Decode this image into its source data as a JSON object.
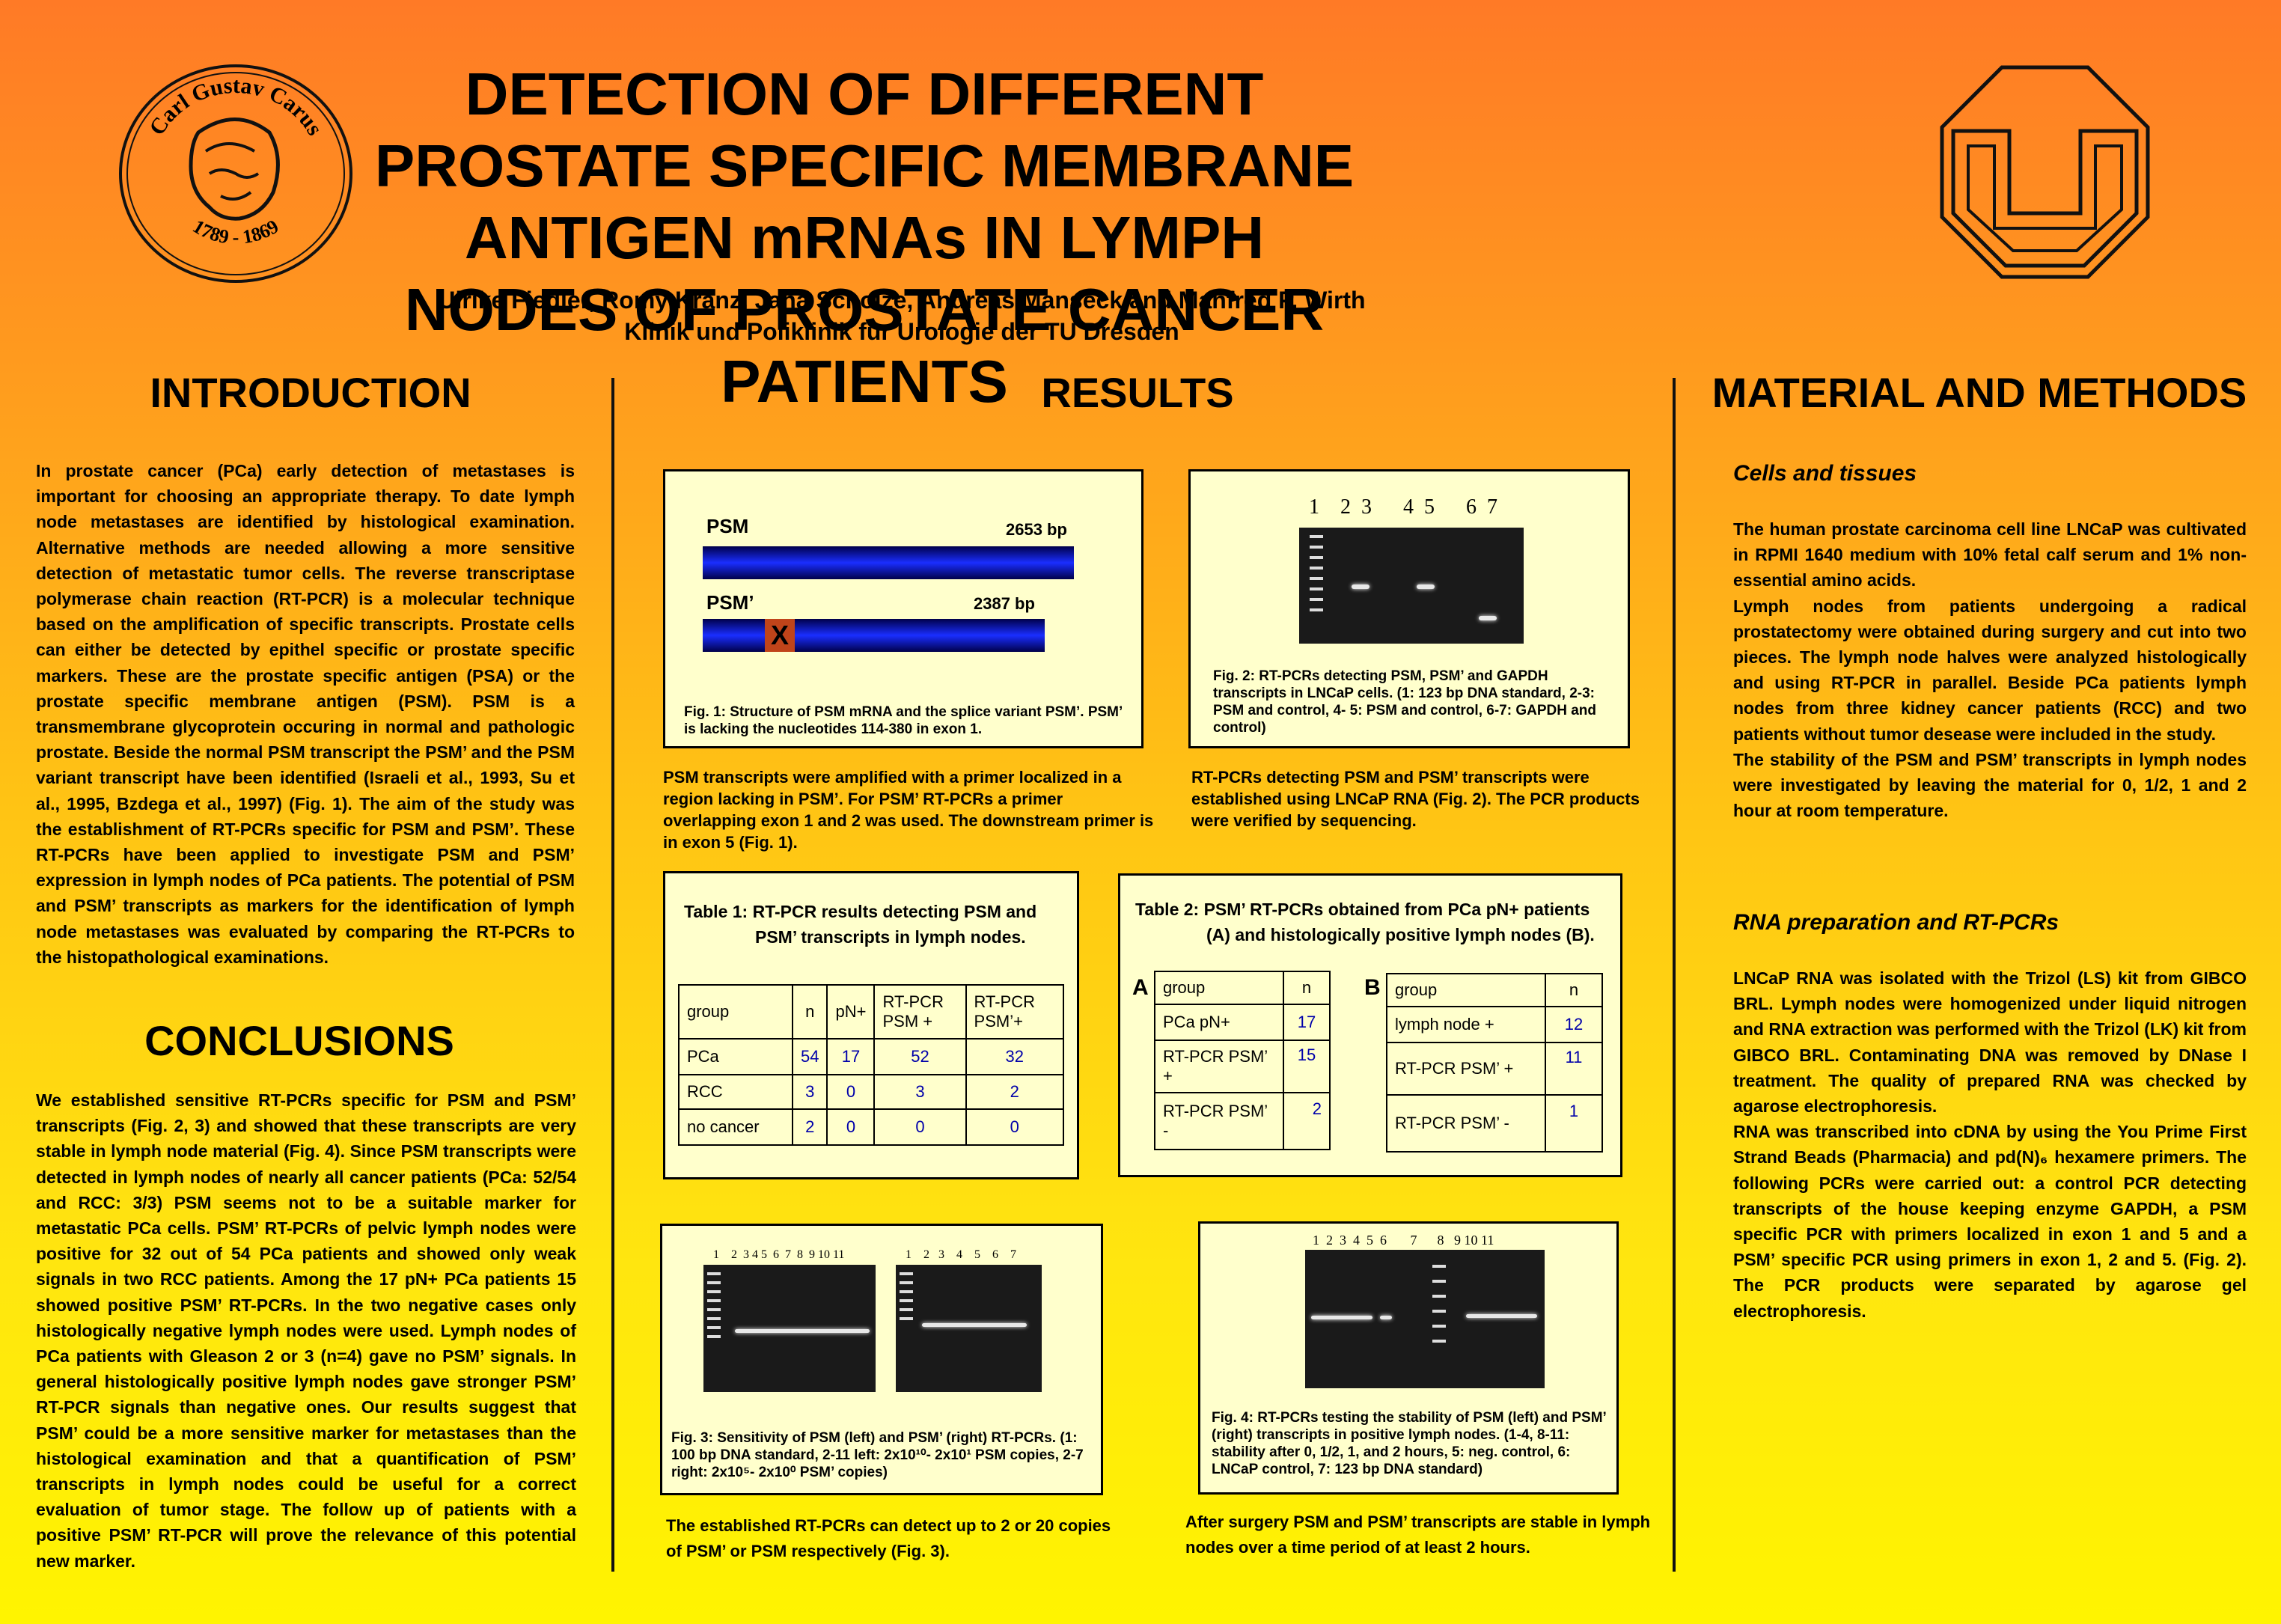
{
  "title": "DETECTION OF DIFFERENT PROSTATE SPECIFIC MEMBRANE ANTIGEN mRNAs IN LYMPH NODES OF PROSTATE CANCER PATIENTS",
  "authors": "Ulrike Fiedler, Romy Kranz, Jana Scholze, Andreas Manseck and Manfred P. Wirth",
  "affiliation": "Klinik und Poliklinik für Urologie der TU Dresden",
  "logo_left": {
    "text_top": "Carl Gustav Carus",
    "text_bottom": "1789 - 1869"
  },
  "sections": {
    "introduction": {
      "heading": "INTRODUCTION",
      "text": "In prostate cancer (PCa) early detection of metastases is important for choosing an appropriate therapy. To date lymph node metastases are identified by histological examination. Alternative methods are needed allowing a more sensitive detection of metastatic tumor cells. The reverse transcriptase polymerase chain reaction (RT-PCR) is a molecular technique based on the amplification of specific transcripts. Prostate cells can either be detected by epithel specific or prostate specific markers. These are the prostate specific antigen (PSA) or the prostate specific membrane antigen (PSM). PSM is a transmembrane glycoprotein occuring in normal and pathologic prostate. Beside the normal PSM transcript the PSM’ and the PSM variant transcript have been identified (Israeli et al., 1993, Su et al., 1995, Bzdega et al., 1997) (Fig. 1). The aim of the study was the establishment of RT-PCRs specific for PSM and PSM’. These RT-PCRs have been applied to investigate PSM and PSM’ expression in lymph nodes of PCa patients. The potential of PSM and PSM’ transcripts as markers for the identification of lymph node metastases was evaluated by comparing the RT-PCRs to the histopathological examinations."
    },
    "conclusions": {
      "heading": "CONCLUSIONS",
      "text": "We established sensitive RT-PCRs specific for PSM and PSM’ transcripts (Fig. 2, 3) and showed that these transcripts are very stable in lymph node material (Fig. 4). Since PSM transcripts were detected in lymph nodes of nearly all cancer patients (PCa: 52/54 and RCC: 3/3) PSM seems not to be a suitable marker for metastatic PCa cells. PSM’ RT-PCRs of pelvic lymph nodes were positive for 32 out of 54 PCa patients and showed only weak signals in two RCC patients. Among the 17 pN+ PCa patients 15 showed positive PSM’ RT-PCRs. In the two negative cases only histologically negative lymph nodes were used. Lymph nodes of PCa patients with Gleason 2 or 3 (n=4) gave no PSM’ signals. In general histologically positive lymph nodes gave stronger PSM’ RT-PCR signals than negative ones. Our results suggest that PSM’ could be a more sensitive marker for metastases than the histological examination and that a quantification of PSM’ transcripts in lymph nodes could be useful for a correct evaluation of tumor stage. The follow up of patients with a positive PSM’ RT-PCR will prove the relevance of this potential new marker."
    },
    "results": {
      "heading": "RESULTS",
      "fig1": {
        "psm_label": "PSM",
        "psm_bp": "2653 bp",
        "psmp_label": "PSM’",
        "psmp_bp": "2387 bp",
        "mark": "X",
        "caption": "Fig. 1: Structure of PSM mRNA and the splice variant PSM’. PSM’ is lacking the nucleotides 114-380 in exon 1.",
        "text": "PSM transcripts were amplified with a primer localized in a region lacking in PSM’. For PSM’ RT-PCRs a primer overlapping exon 1 and 2 was used. The downstream primer is in exon 5  (Fig. 1)."
      },
      "fig2": {
        "lanes": "1    2  3      4  5      6  7",
        "caption": "Fig. 2: RT-PCRs detecting PSM, PSM’ and GAPDH transcripts in LNCaP cells. (1: 123 bp DNA  standard, 2-3: PSM and control, 4- 5: PSM and control, 6-7: GAPDH and control)",
        "text": "RT-PCRs detecting PSM and PSM’ transcripts were established using LNCaP RNA (Fig. 2). The PCR products were verified by sequencing."
      },
      "table1": {
        "title_line1": "Table 1: RT-PCR results detecting PSM and",
        "title_line2": "PSM’ transcripts in lymph nodes.",
        "headers": [
          "group",
          "n",
          "pN+",
          "RT-PCR PSM +",
          "RT-PCR PSM’+"
        ],
        "rows": [
          [
            "PCa",
            "54",
            "17",
            "52",
            "32"
          ],
          [
            "RCC",
            "3",
            "0",
            "3",
            "2"
          ],
          [
            "no cancer",
            "2",
            "0",
            "0",
            "0"
          ]
        ]
      },
      "table2": {
        "title_line1": "Table 2: PSM’ RT-PCRs obtained from PCa pN+ patients",
        "title_line2": "(A) and histologically positive lymph nodes (B).",
        "label_a": "A",
        "label_b": "B",
        "a_headers": [
          "group",
          "n"
        ],
        "a_rows": [
          [
            "PCa pN+",
            "17"
          ],
          [
            "RT-PCR PSM’ +",
            "15"
          ],
          [
            "RT-PCR PSM’ -",
            "2"
          ]
        ],
        "b_headers": [
          "group",
          "n"
        ],
        "b_rows": [
          [
            "lymph node +",
            "12"
          ],
          [
            "RT-PCR PSM’ +",
            "11"
          ],
          [
            "RT-PCR PSM’ -",
            "1"
          ]
        ]
      },
      "fig3": {
        "lanes_left": "1    2  3 4 5  6  7  8  9 10 11",
        "lanes_right": "1    2   3    4    5    6    7",
        "caption": "Fig. 3: Sensitivity of PSM (left) and PSM’ (right) RT-PCRs. (1: 100 bp DNA standard, 2-11 left: 2x10¹⁰- 2x10¹ PSM copies, 2-7 right: 2x10⁵- 2x10⁰ PSM’ copies)",
        "text": "The established RT-PCRs can detect up to 2 or 20 copies of PSM’ or PSM respectively (Fig. 3)."
      },
      "fig4": {
        "lanes": "1  2  3  4  5  6       7      8   9 10 11",
        "caption": "Fig. 4: RT-PCRs testing the stability of PSM (left) and PSM’ (right) transcripts in positive lymph nodes. (1-4, 8-11: stability after 0, 1/2, 1, and 2 hours, 5: neg. control, 6: LNCaP control, 7: 123 bp DNA standard)",
        "text": "After surgery PSM and PSM’ transcripts are stable in lymph nodes over a time period of at least 2 hours."
      }
    },
    "methods": {
      "heading": "MATERIAL AND METHODS",
      "sub1": "Cells and tissues",
      "text1": "The human prostate carcinoma cell line LNCaP was cultivated in RPMI 1640 medium with 10% fetal calf serum and 1% non-essential amino acids.",
      "text2": "Lymph nodes from patients undergoing a radical prostatectomy were obtained during surgery and cut into two pieces. The lymph node halves were analyzed histologically and using RT-PCR in parallel. Beside PCa patients lymph nodes from three kidney cancer patients (RCC) and two patients without tumor desease were included in the study.",
      "text3": "The stability of the PSM and PSM’ transcripts in lymph nodes were investigated by leaving the material for 0, 1/2, 1 and 2 hour at room temperature.",
      "sub2": "RNA preparation and RT-PCRs",
      "text4": "LNCaP RNA was isolated with the Trizol (LS) kit from GIBCO BRL. Lymph nodes were homogenized under liquid nitrogen and RNA extraction was performed with the Trizol (LK) kit from GIBCO BRL. Contaminating DNA was removed by DNase I treatment. The quality of prepared RNA was checked by agarose electrophoresis.",
      "text5": "RNA was transcribed into cDNA by using the You Prime First Strand Beads (Pharmacia) and pd(N)₆ hexamere primers. The following PCRs were carried out: a control PCR detecting transcripts of the house keeping enzyme GAPDH, a PSM specific PCR with primers localized in exon 1 and 5 and a PSM’ specific PCR using primers in exon 1, 2 and 5. (Fig. 2). The PCR products were separated by agarose gel electrophoresis."
    }
  }
}
